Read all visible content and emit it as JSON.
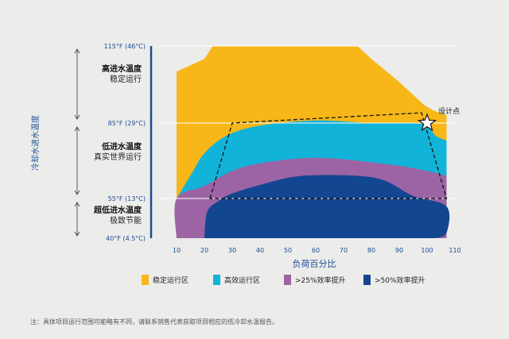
{
  "chart_data": {
    "type": "area",
    "xlabel": "负荷百分比",
    "ylabel": "冷却水进水温度",
    "x_ticks": [
      10,
      20,
      30,
      40,
      50,
      60,
      70,
      80,
      90,
      100,
      110
    ],
    "xlim": [
      10,
      110
    ],
    "y_ticks": [
      "115°F (46°C)",
      "85°F (29°C)",
      "55°F (13°C)",
      "40°F (4.5°C)"
    ],
    "y_tick_values_F": [
      115,
      85,
      55,
      40
    ],
    "series": [
      {
        "name": "稳定运行区",
        "color": "#f7b718",
        "points": [
          [
            10,
            105
          ],
          [
            20,
            110
          ],
          [
            23,
            115
          ],
          [
            75,
            115
          ],
          [
            80,
            110
          ],
          [
            90,
            101
          ],
          [
            99,
            92
          ],
          [
            102,
            90
          ],
          [
            107,
            88
          ]
        ]
      },
      {
        "name": "高效运行区",
        "color": "#12b3d8",
        "points": [
          [
            10,
            55
          ],
          [
            16,
            66
          ],
          [
            20,
            73
          ],
          [
            28,
            80
          ],
          [
            40,
            84
          ],
          [
            60,
            86
          ],
          [
            80,
            85
          ],
          [
            93,
            85
          ],
          [
            100,
            84
          ],
          [
            103,
            80
          ],
          [
            107,
            78
          ]
        ]
      },
      {
        "name": ">25%效率提升",
        "color": "#9c64a4",
        "points": [
          [
            10,
            40
          ],
          [
            10,
            55
          ],
          [
            20,
            60
          ],
          [
            30,
            66
          ],
          [
            40,
            69
          ],
          [
            55,
            71
          ],
          [
            65,
            71
          ],
          [
            75,
            70
          ],
          [
            90,
            68
          ],
          [
            100,
            66
          ],
          [
            107,
            64
          ]
        ]
      },
      {
        "name": ">50%效率提升",
        "color": "#134691",
        "points": [
          [
            20,
            40
          ],
          [
            21,
            50
          ],
          [
            25,
            54
          ],
          [
            30,
            57
          ],
          [
            42,
            61
          ],
          [
            55,
            64
          ],
          [
            75,
            64
          ],
          [
            85,
            62
          ],
          [
            95,
            56
          ],
          [
            107,
            52
          ],
          [
            107,
            42
          ],
          [
            103,
            40
          ]
        ]
      }
    ],
    "design_envelope": [
      [
        22,
        55
      ],
      [
        30,
        85
      ],
      [
        98,
        89
      ],
      [
        107,
        55
      ]
    ],
    "design_point": {
      "x": 100,
      "y": 85,
      "label": "设计点"
    },
    "zones": [
      {
        "title": "高进水温度",
        "subtitle": "稳定运行"
      },
      {
        "title": "低进水温度",
        "subtitle": "真实世界运行"
      },
      {
        "title": "超低进水温度",
        "subtitle": "极致节能"
      }
    ]
  },
  "footnote": "注：具体项目运行范围可能略有不同，请联系销售代表获取项目相应的低冷却水温报告。"
}
